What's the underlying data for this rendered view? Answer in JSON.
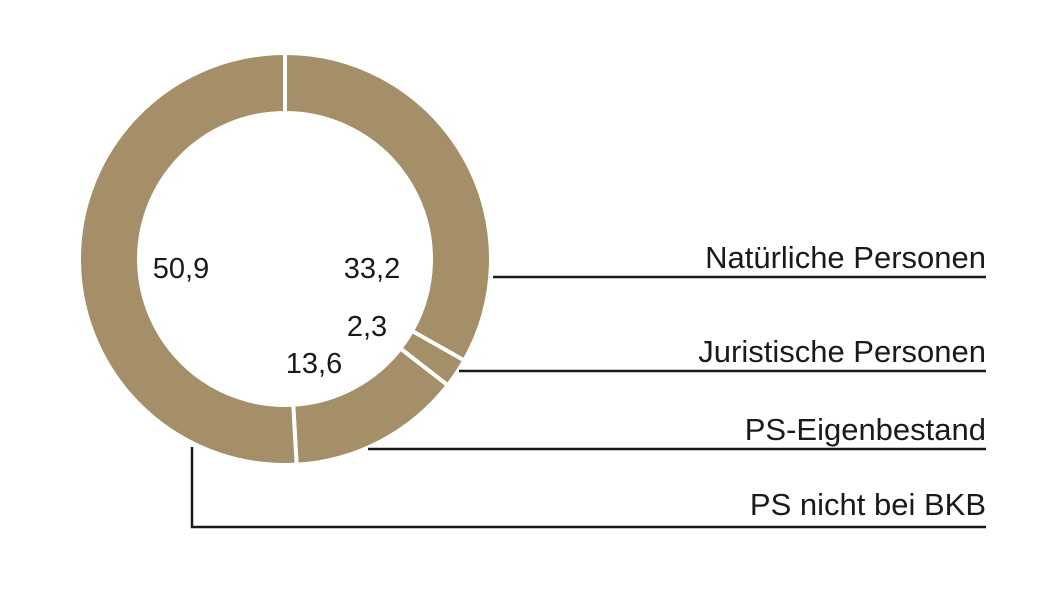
{
  "chart_data": {
    "type": "pie",
    "title": "",
    "slices": [
      {
        "label": "Natürliche Personen",
        "value": 33.2,
        "value_label": "33,2"
      },
      {
        "label": "Juristische Personen",
        "value": 2.3,
        "value_label": "2,3"
      },
      {
        "label": "PS-Eigenbestand",
        "value": 13.6,
        "value_label": "13,6"
      },
      {
        "label": "PS nicht bei BKB",
        "value": 50.9,
        "value_label": "50,9"
      }
    ],
    "colors": {
      "slice": "#a58f69",
      "separator": "#ffffff",
      "text": "#1a1a1a"
    },
    "legend": "right"
  }
}
